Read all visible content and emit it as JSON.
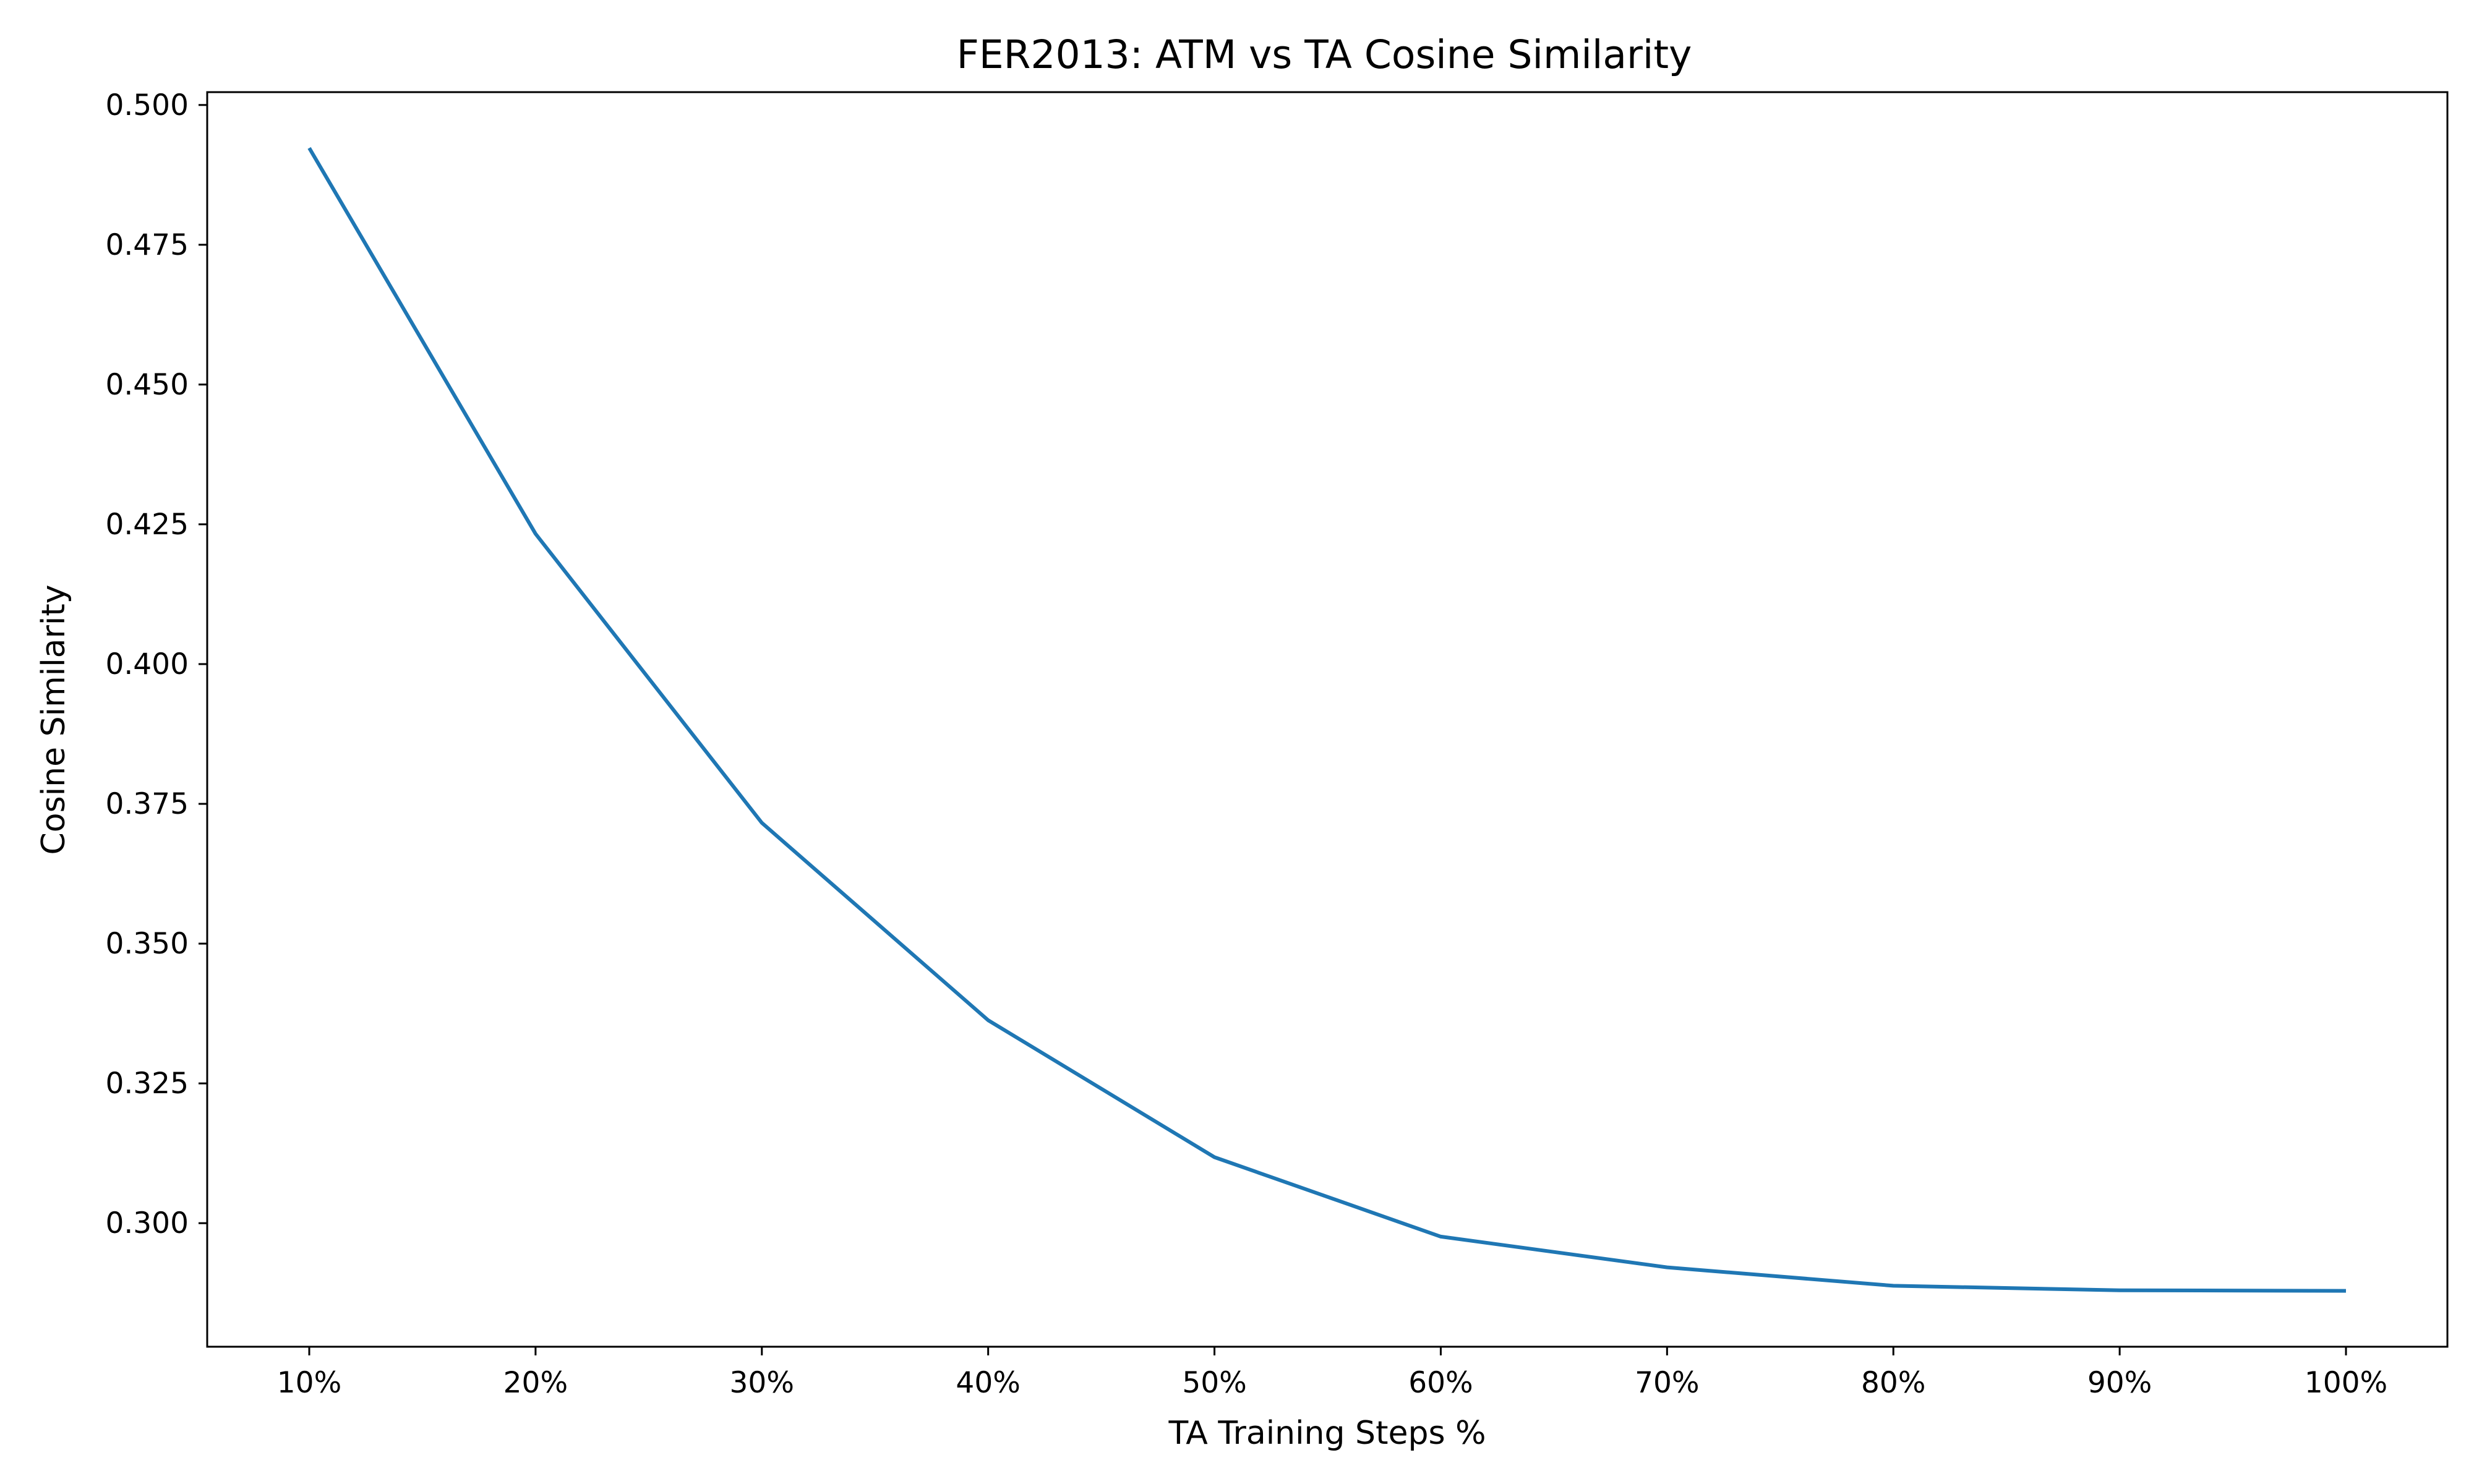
{
  "chart_data": {
    "type": "line",
    "title": "FER2013: ATM vs TA Cosine Similarity",
    "xlabel": "TA Training Steps %",
    "ylabel": "Cosine Similarity",
    "categories": [
      "10%",
      "20%",
      "30%",
      "40%",
      "50%",
      "60%",
      "70%",
      "80%",
      "90%",
      "100%"
    ],
    "series": [
      {
        "values": [
          0.4923,
          0.4233,
          0.3716,
          0.3363,
          0.3118,
          0.2976,
          0.2921,
          0.2888,
          0.288,
          0.2879
        ],
        "color": "#1f77b4"
      }
    ],
    "ylim": [
      0.2779,
      0.5023
    ],
    "yticks": [
      "0.300",
      "0.325",
      "0.350",
      "0.375",
      "0.400",
      "0.425",
      "0.450",
      "0.475",
      "0.500"
    ],
    "grid": false,
    "legend": "none"
  }
}
